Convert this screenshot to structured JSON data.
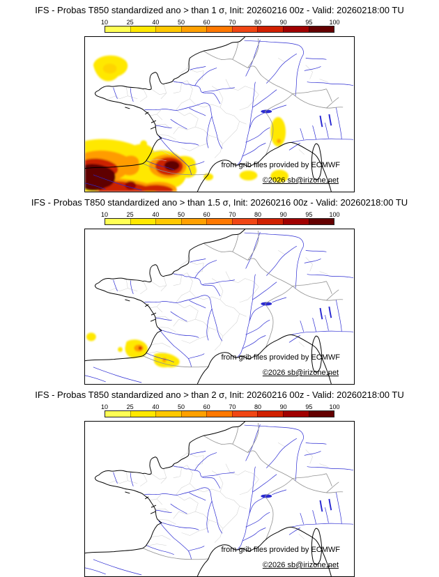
{
  "colorbar": {
    "ticks": [
      "10",
      "25",
      "40",
      "50",
      "60",
      "70",
      "80",
      "90",
      "95",
      "100"
    ],
    "colors": [
      "#ffff54",
      "#ffe800",
      "#ffc800",
      "#ffa000",
      "#ff7800",
      "#f04614",
      "#d02000",
      "#a00000",
      "#640000"
    ]
  },
  "credits": {
    "source": "from grib files provided by ECMWF",
    "copyright": "©2026 sb@irizone.net"
  },
  "panels": [
    {
      "title": "IFS - Probas T850  standardized ano > than 1 σ, Init: 20260216 00z - Valid: 20260218:00 TU"
    },
    {
      "title": "IFS - Probas T850  standardized ano > than 1.5 σ, Init: 20260216 00z - Valid: 20260218:00 TU"
    },
    {
      "title": "IFS - Probas T850  standardized ano > than 2 σ, Init: 20260216 00z - Valid: 20260218:00 TU"
    }
  ]
}
